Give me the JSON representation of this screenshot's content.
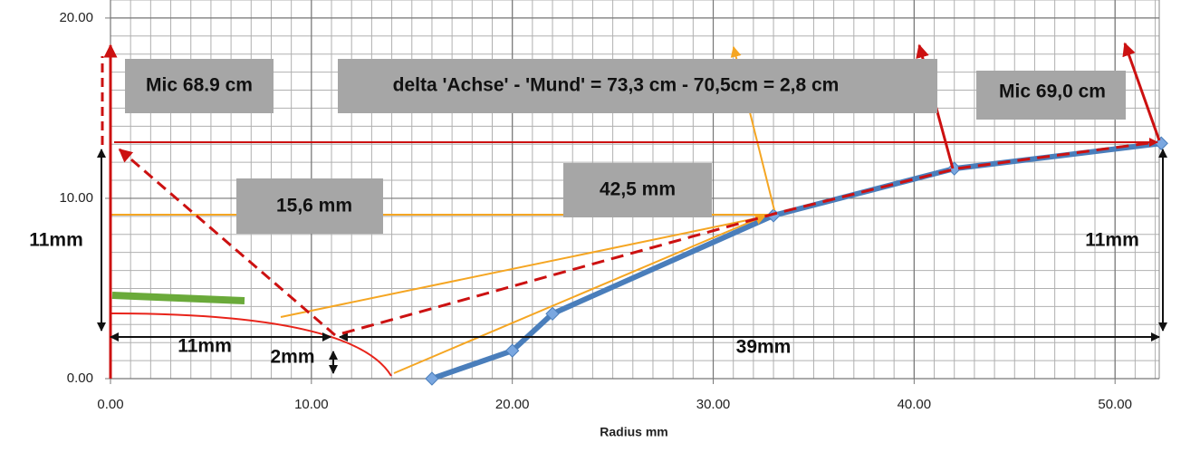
{
  "chart_data": {
    "type": "line",
    "x_label": "Radius mm",
    "x": [
      16,
      20,
      22,
      33,
      42,
      52.3
    ],
    "series": [
      {
        "color": "#4a7ebb",
        "values": [
          0,
          1.55,
          3.6,
          9.05,
          11.65,
          13.05
        ]
      }
    ],
    "xlim": [
      0,
      52.2
    ],
    "ylim": [
      0,
      21
    ],
    "xticks": [
      {
        "value": 0,
        "label": "0.00"
      },
      {
        "value": 10,
        "label": "10.00"
      },
      {
        "value": 20,
        "label": "20.00"
      },
      {
        "value": 30,
        "label": "30.00"
      },
      {
        "value": 40,
        "label": "40.00"
      },
      {
        "value": 50,
        "label": "50.00"
      }
    ],
    "yticks": [
      {
        "value": 0,
        "label": "0.00"
      },
      {
        "value": 10,
        "label": "10.00"
      },
      {
        "value": 20,
        "label": "20.00"
      }
    ],
    "grid": true,
    "annotations": [
      "Mic 68.9 cm",
      "delta 'Achse' - 'Mund' = 73,3 cm - 70,5cm = 2,8 cm",
      "Mic 69,0 cm",
      "15,6 mm",
      "42,5 mm",
      "11mm",
      "11mm",
      "11mm",
      "2mm",
      "39mm"
    ]
  }
}
